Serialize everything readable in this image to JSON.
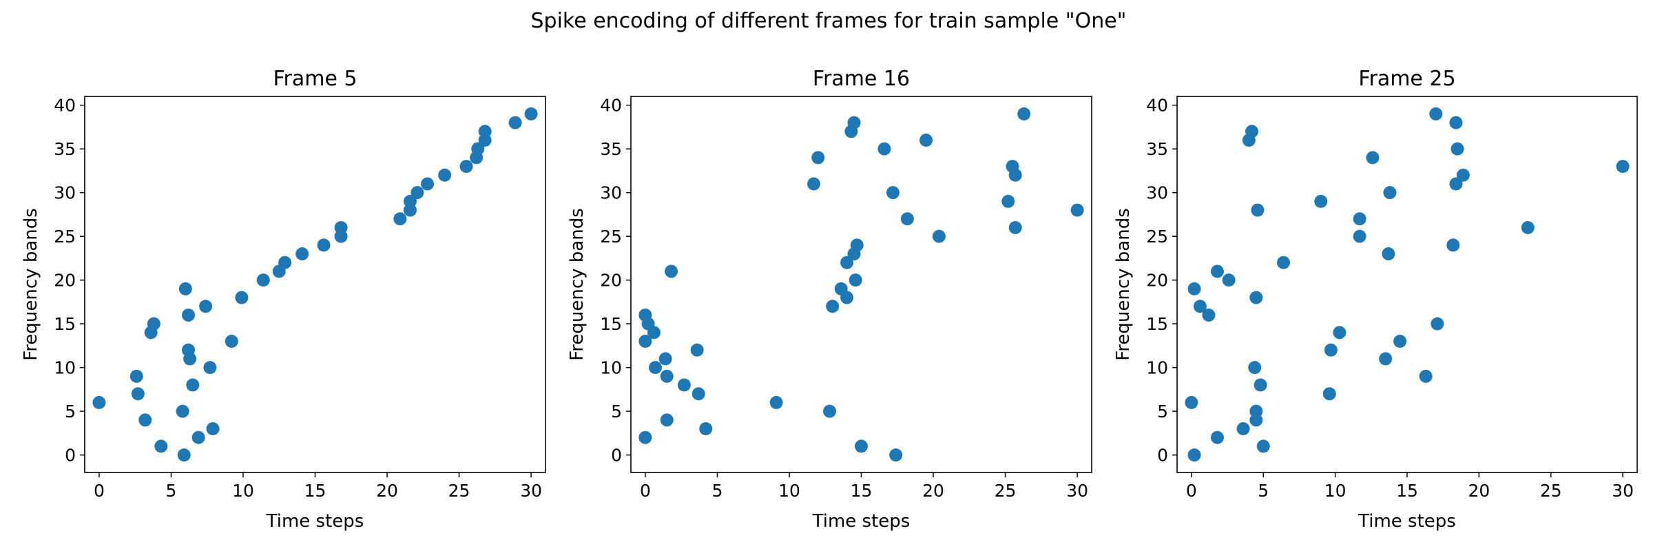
{
  "suptitle": "Spike encoding of different frames for train sample \"One\"",
  "chart_data": [
    {
      "type": "scatter",
      "title": "Frame 5",
      "xlabel": "Time steps",
      "ylabel": "Frequency bands",
      "xlim": [
        -1,
        31
      ],
      "ylim": [
        -2,
        41
      ],
      "xticks": [
        0,
        5,
        10,
        15,
        20,
        25,
        30
      ],
      "yticks": [
        0,
        5,
        10,
        15,
        20,
        25,
        30,
        35,
        40
      ],
      "color": "#1f77b4",
      "points": [
        [
          0,
          6
        ],
        [
          2.6,
          9
        ],
        [
          2.7,
          7
        ],
        [
          3.2,
          4
        ],
        [
          3.6,
          14
        ],
        [
          3.8,
          15
        ],
        [
          4.3,
          1
        ],
        [
          5.8,
          5
        ],
        [
          5.9,
          0
        ],
        [
          6.0,
          19
        ],
        [
          6.2,
          16
        ],
        [
          6.2,
          12
        ],
        [
          6.3,
          11
        ],
        [
          6.5,
          8
        ],
        [
          6.9,
          2
        ],
        [
          7.4,
          17
        ],
        [
          7.7,
          10
        ],
        [
          7.9,
          3
        ],
        [
          9.2,
          13
        ],
        [
          9.9,
          18
        ],
        [
          11.4,
          20
        ],
        [
          12.5,
          21
        ],
        [
          12.9,
          22
        ],
        [
          14.1,
          23
        ],
        [
          15.6,
          24
        ],
        [
          16.8,
          25
        ],
        [
          16.8,
          26
        ],
        [
          20.9,
          27
        ],
        [
          21.6,
          28
        ],
        [
          21.6,
          29
        ],
        [
          22.1,
          30
        ],
        [
          22.8,
          31
        ],
        [
          24.0,
          32
        ],
        [
          25.5,
          33
        ],
        [
          26.2,
          34
        ],
        [
          26.3,
          35
        ],
        [
          26.8,
          36
        ],
        [
          26.8,
          37
        ],
        [
          28.9,
          38
        ],
        [
          30.0,
          39
        ]
      ]
    },
    {
      "type": "scatter",
      "title": "Frame 16",
      "xlabel": "Time steps",
      "ylabel": "Frequency bands",
      "xlim": [
        -1,
        31
      ],
      "ylim": [
        -2,
        41
      ],
      "xticks": [
        0,
        5,
        10,
        15,
        20,
        25,
        30
      ],
      "yticks": [
        0,
        5,
        10,
        15,
        20,
        25,
        30,
        35,
        40
      ],
      "color": "#1f77b4",
      "points": [
        [
          0,
          16
        ],
        [
          0,
          13
        ],
        [
          0,
          2
        ],
        [
          0.2,
          15
        ],
        [
          0.6,
          14
        ],
        [
          0.7,
          10
        ],
        [
          1.4,
          11
        ],
        [
          1.5,
          9
        ],
        [
          1.5,
          4
        ],
        [
          1.8,
          21
        ],
        [
          2.7,
          8
        ],
        [
          3.6,
          12
        ],
        [
          3.7,
          7
        ],
        [
          4.2,
          3
        ],
        [
          9.1,
          6
        ],
        [
          11.7,
          31
        ],
        [
          12.0,
          34
        ],
        [
          12.8,
          5
        ],
        [
          13.0,
          17
        ],
        [
          13.6,
          19
        ],
        [
          14.0,
          18
        ],
        [
          14.0,
          22
        ],
        [
          14.3,
          37
        ],
        [
          14.5,
          38
        ],
        [
          14.5,
          23
        ],
        [
          14.6,
          20
        ],
        [
          14.7,
          24
        ],
        [
          15.0,
          1
        ],
        [
          16.6,
          35
        ],
        [
          17.2,
          30
        ],
        [
          17.4,
          0
        ],
        [
          18.2,
          27
        ],
        [
          19.5,
          36
        ],
        [
          20.4,
          25
        ],
        [
          25.2,
          29
        ],
        [
          25.5,
          33
        ],
        [
          25.7,
          32
        ],
        [
          25.7,
          26
        ],
        [
          26.3,
          39
        ],
        [
          30.0,
          28
        ]
      ]
    },
    {
      "type": "scatter",
      "title": "Frame 25",
      "xlabel": "Time steps",
      "ylabel": "Frequency bands",
      "xlim": [
        -1,
        31
      ],
      "ylim": [
        -2,
        41
      ],
      "xticks": [
        0,
        5,
        10,
        15,
        20,
        25,
        30
      ],
      "yticks": [
        0,
        5,
        10,
        15,
        20,
        25,
        30,
        35,
        40
      ],
      "color": "#1f77b4",
      "points": [
        [
          0,
          6
        ],
        [
          0.2,
          19
        ],
        [
          0.2,
          0
        ],
        [
          0.6,
          17
        ],
        [
          1.2,
          16
        ],
        [
          1.8,
          21
        ],
        [
          1.8,
          2
        ],
        [
          2.6,
          20
        ],
        [
          3.6,
          3
        ],
        [
          4.0,
          36
        ],
        [
          4.2,
          37
        ],
        [
          4.4,
          10
        ],
        [
          4.5,
          18
        ],
        [
          4.5,
          5
        ],
        [
          4.5,
          4
        ],
        [
          4.6,
          28
        ],
        [
          4.8,
          8
        ],
        [
          5.0,
          1
        ],
        [
          6.4,
          22
        ],
        [
          9.0,
          29
        ],
        [
          9.6,
          7
        ],
        [
          9.7,
          12
        ],
        [
          10.3,
          14
        ],
        [
          11.7,
          27
        ],
        [
          11.7,
          25
        ],
        [
          12.6,
          34
        ],
        [
          13.5,
          11
        ],
        [
          13.7,
          23
        ],
        [
          13.8,
          30
        ],
        [
          14.5,
          13
        ],
        [
          16.3,
          9
        ],
        [
          17.0,
          39
        ],
        [
          17.1,
          15
        ],
        [
          18.2,
          24
        ],
        [
          18.4,
          38
        ],
        [
          18.4,
          31
        ],
        [
          18.5,
          35
        ],
        [
          18.9,
          32
        ],
        [
          23.4,
          26
        ],
        [
          30.0,
          33
        ]
      ]
    }
  ]
}
